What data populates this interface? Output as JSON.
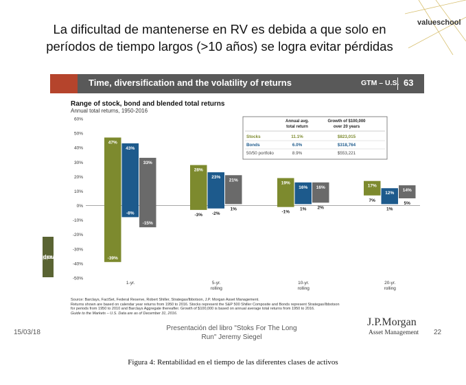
{
  "slide": {
    "title": "La dificultad de mantenerse en RV es debida a que solo en períodos de tiempo largos (>10 años) se logra evitar pérdidas",
    "logo": "valueschool"
  },
  "banner": {
    "title": "Time, diversification and the volatility of returns",
    "code": "GTM – U.S.",
    "page": "63"
  },
  "sidetab": {
    "label_line1": "Investing",
    "label_line2": "principles"
  },
  "colors": {
    "stocks": "#7d8a2e",
    "bonds": "#1d5a8c",
    "blend": "#6a6a6a",
    "banner": "#595959",
    "accent": "#b5442c",
    "sidetab": "#5a6433"
  },
  "chart_data": {
    "type": "floating-bar",
    "title": "Range of stock, bond and blended total returns",
    "subtitle": "Annual total returns, 1950-2016",
    "ylim": [
      -50,
      60
    ],
    "yticks": [
      -50,
      -40,
      -30,
      -20,
      -10,
      0,
      10,
      20,
      30,
      40,
      50,
      60
    ],
    "ytick_labels": [
      "-50%",
      "-40%",
      "-30%",
      "-20%",
      "-10%",
      "0%",
      "10%",
      "20%",
      "30%",
      "40%",
      "50%",
      "60%"
    ],
    "categories": [
      "1-yr.",
      "5-yr.\nrolling",
      "10-yr.\nrolling",
      "20-yr.\nrolling"
    ],
    "series": [
      {
        "name": "Stocks",
        "high": [
          47,
          28,
          19,
          17
        ],
        "low": [
          -39,
          -3,
          -1,
          7
        ],
        "high_labels": [
          "47%",
          "28%",
          "19%",
          "17%"
        ],
        "low_labels": [
          "-39%",
          "-3%",
          "-1%",
          "7%"
        ]
      },
      {
        "name": "Bonds",
        "high": [
          43,
          23,
          16,
          12
        ],
        "low": [
          -8,
          -2,
          1,
          1
        ],
        "high_labels": [
          "43%",
          "23%",
          "16%",
          "12%"
        ],
        "low_labels": [
          "-8%",
          "-2%",
          "1%",
          "1%"
        ]
      },
      {
        "name": "50/50 portfolio",
        "high": [
          33,
          21,
          16,
          14
        ],
        "low": [
          -15,
          1,
          2,
          5
        ],
        "high_labels": [
          "33%",
          "21%",
          "16%",
          "14%"
        ],
        "low_labels": [
          "-15%",
          "1%",
          "2%",
          "5%"
        ]
      }
    ],
    "table": {
      "headers": [
        "",
        "Annual avg.\ntotal return",
        "Growth of $100,000\nover 20 years"
      ],
      "rows": [
        [
          "Stocks",
          "11.1%",
          "$823,015"
        ],
        [
          "Bonds",
          "6.0%",
          "$318,764"
        ],
        [
          "50/50 portfolio",
          "8.9%",
          "$553,221"
        ]
      ]
    }
  },
  "sources": {
    "line1": "Source: Barclays, FactSet, Federal Reserve, Robert Shiller, Strategas/Ibbotson, J.P. Morgan Asset Management.",
    "line2": "Returns shown are based on calendar year returns from 1950 to 2016. Stocks represent the S&P 500 Shiller Composite and Bonds represent Strategas/Ibbotson",
    "line3": "for periods from 1950 to 2010 and Barclays Aggregate thereafter. Growth of $100,000 is based on annual average total returns from 1950 to 2016.",
    "line4": "Guide to the Markets – U.S. Data are as of December 31, 2016."
  },
  "footer": {
    "date": "15/03/18",
    "presentation_line1": "Presentación del libro \"Stoks For The Long",
    "presentation_line2": "Run\" Jeremy Siegel",
    "brand": "J.P.Morgan",
    "brand_sub": "Asset Management",
    "slide_number": "22"
  },
  "caption": "Figura 4: Rentabilidad en el tiempo de las diferentes clases de activos"
}
